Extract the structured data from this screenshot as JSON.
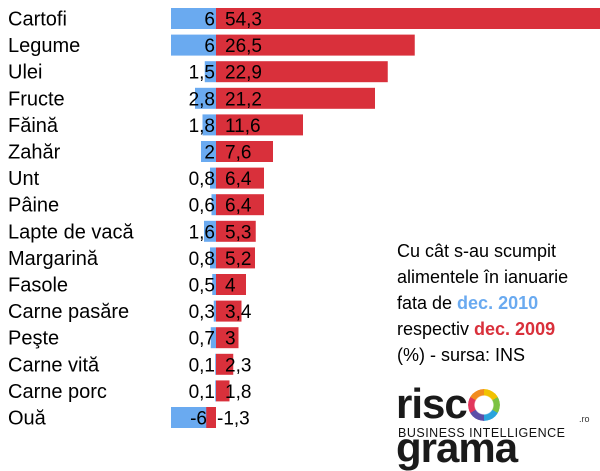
{
  "chart_data": {
    "type": "bar",
    "categories": [
      "Cartofi",
      "Legume",
      "Ulei",
      "Fructe",
      "Făină",
      "Zahăr",
      "Unt",
      "Pâine",
      "Lapte de vacă",
      "Margarină",
      "Fasole",
      "Carne pasăre",
      "Peşte",
      "Carne vită",
      "Carne porc",
      "Ouă"
    ],
    "series": [
      {
        "color": "#6aaaf0",
        "values": [
          6,
          6,
          1.5,
          2.8,
          1.8,
          2,
          0.8,
          0.6,
          1.6,
          0.8,
          0.5,
          0.3,
          0.7,
          0.1,
          0.1,
          -6
        ],
        "labels": [
          "6",
          "6",
          "1,5",
          "2,8",
          "1,8",
          "2",
          "0,8",
          "0,6",
          "1,6",
          "0,8",
          "0,5",
          "0,3",
          "0,7",
          "0,1",
          "0,1",
          "-6"
        ]
      },
      {
        "color": "#d9303b",
        "values": [
          54.3,
          26.5,
          22.9,
          21.2,
          11.6,
          7.6,
          6.4,
          6.4,
          5.3,
          5.2,
          4,
          3.4,
          3,
          2.3,
          1.8,
          -1.3
        ],
        "labels": [
          "54,3",
          "26,5",
          "22,9",
          "21,2",
          "11,6",
          "7,6",
          "6,4",
          "6,4",
          "5,3",
          "5,2",
          "4",
          "3,4",
          "3",
          "2,3",
          "1,8",
          "-1,3"
        ]
      }
    ],
    "legend": "right, inline text"
  },
  "note": {
    "line1": "Cu cât s-au scumpit",
    "line2": "alimentele în ianuarie",
    "line3_prefix": "fata de ",
    "series1_name": "dec. 2010",
    "line4_prefix": "respectiv ",
    "series2_name": "dec. 2009",
    "line5": "(%) - sursa: INS"
  },
  "logo": {
    "word_left": "risc",
    "word_right": "grama",
    "tld": ".ro",
    "tagline": "BUSINESS INTELLIGENCE"
  }
}
